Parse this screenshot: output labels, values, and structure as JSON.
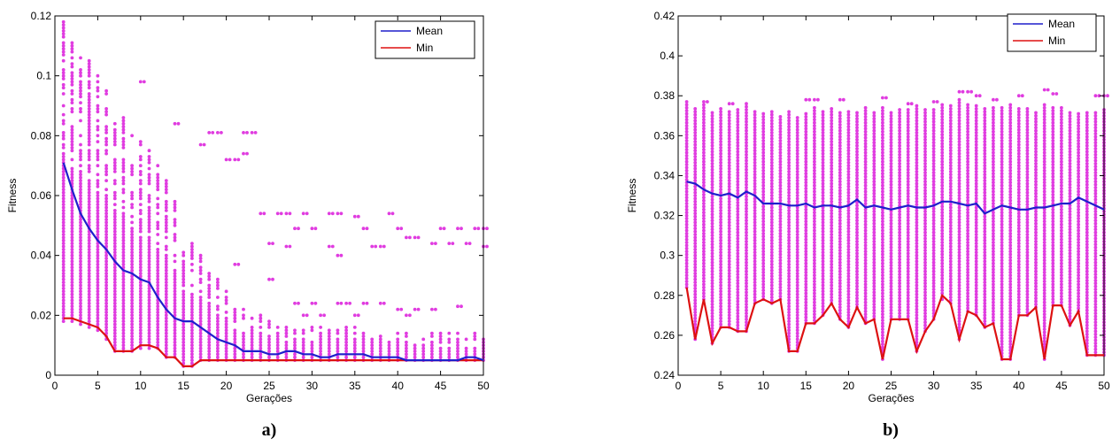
{
  "chart_data": [
    {
      "type": "scatter",
      "panel_label": "a)",
      "xlabel": "Gerações",
      "ylabel": "Fitness",
      "xlim": [
        0,
        50
      ],
      "ylim": [
        0,
        0.12
      ],
      "xticks": [
        0,
        5,
        10,
        15,
        20,
        25,
        30,
        35,
        40,
        45,
        50
      ],
      "yticks": [
        0,
        0.02,
        0.04,
        0.06,
        0.08,
        0.1,
        0.12
      ],
      "ytick_labels": [
        "0",
        "0.02",
        "0.04",
        "0.06",
        "0.08",
        "0.1",
        "0.12"
      ],
      "legend_position": "top-right",
      "colors": {
        "population": "#e03ce0",
        "mean": "#1f1fcc",
        "min": "#dd1111"
      },
      "population_range": {
        "x": [
          1,
          2,
          3,
          4,
          5,
          6,
          7,
          8,
          9,
          10,
          11,
          12,
          13,
          14,
          15,
          16,
          17,
          18,
          19,
          20,
          21,
          22,
          23,
          24,
          25,
          26,
          27,
          28,
          29,
          30,
          31,
          32,
          33,
          34,
          35,
          36,
          37,
          38,
          39,
          40,
          41,
          42,
          43,
          44,
          45,
          46,
          47,
          48,
          49,
          50
        ],
        "low": [
          0.018,
          0.018,
          0.017,
          0.016,
          0.015,
          0.012,
          0.008,
          0.008,
          0.008,
          0.009,
          0.009,
          0.009,
          0.006,
          0.006,
          0.003,
          0.003,
          0.005,
          0.005,
          0.005,
          0.005,
          0.005,
          0.005,
          0.005,
          0.005,
          0.005,
          0.005,
          0.005,
          0.005,
          0.005,
          0.005,
          0.005,
          0.005,
          0.005,
          0.005,
          0.005,
          0.005,
          0.005,
          0.005,
          0.005,
          0.005,
          0.005,
          0.005,
          0.005,
          0.005,
          0.005,
          0.005,
          0.005,
          0.005,
          0.005,
          0.005
        ],
        "high": [
          0.118,
          0.112,
          0.108,
          0.106,
          0.1,
          0.095,
          0.09,
          0.086,
          0.08,
          0.078,
          0.075,
          0.07,
          0.065,
          0.058,
          0.05,
          0.045,
          0.04,
          0.036,
          0.032,
          0.028,
          0.025,
          0.023,
          0.02,
          0.02,
          0.018,
          0.016,
          0.016,
          0.016,
          0.016,
          0.016,
          0.016,
          0.016,
          0.016,
          0.016,
          0.016,
          0.014,
          0.014,
          0.014,
          0.014,
          0.014,
          0.014,
          0.014,
          0.014,
          0.014,
          0.014,
          0.014,
          0.014,
          0.014,
          0.014,
          0.014
        ]
      },
      "outliers": [
        {
          "x": 10,
          "y": 0.098
        },
        {
          "x": 14,
          "y": 0.084
        },
        {
          "x": 18,
          "y": 0.081
        },
        {
          "x": 19,
          "y": 0.081
        },
        {
          "x": 22,
          "y": 0.081
        },
        {
          "x": 23,
          "y": 0.081
        },
        {
          "x": 17,
          "y": 0.077
        },
        {
          "x": 20,
          "y": 0.072
        },
        {
          "x": 21,
          "y": 0.072
        },
        {
          "x": 22,
          "y": 0.074
        },
        {
          "x": 24,
          "y": 0.054
        },
        {
          "x": 26,
          "y": 0.054
        },
        {
          "x": 27,
          "y": 0.054
        },
        {
          "x": 29,
          "y": 0.054
        },
        {
          "x": 32,
          "y": 0.054
        },
        {
          "x": 33,
          "y": 0.054
        },
        {
          "x": 35,
          "y": 0.053
        },
        {
          "x": 39,
          "y": 0.054
        },
        {
          "x": 45,
          "y": 0.049
        },
        {
          "x": 47,
          "y": 0.049
        },
        {
          "x": 49,
          "y": 0.049
        },
        {
          "x": 50,
          "y": 0.049
        },
        {
          "x": 28,
          "y": 0.049
        },
        {
          "x": 30,
          "y": 0.049
        },
        {
          "x": 36,
          "y": 0.049
        },
        {
          "x": 40,
          "y": 0.049
        },
        {
          "x": 41,
          "y": 0.046
        },
        {
          "x": 42,
          "y": 0.046
        },
        {
          "x": 44,
          "y": 0.044
        },
        {
          "x": 46,
          "y": 0.044
        },
        {
          "x": 48,
          "y": 0.044
        },
        {
          "x": 50,
          "y": 0.043
        },
        {
          "x": 37,
          "y": 0.043
        },
        {
          "x": 38,
          "y": 0.043
        },
        {
          "x": 25,
          "y": 0.044
        },
        {
          "x": 27,
          "y": 0.043
        },
        {
          "x": 32,
          "y": 0.043
        },
        {
          "x": 33,
          "y": 0.04
        },
        {
          "x": 21,
          "y": 0.037
        },
        {
          "x": 25,
          "y": 0.032
        },
        {
          "x": 28,
          "y": 0.024
        },
        {
          "x": 30,
          "y": 0.024
        },
        {
          "x": 33,
          "y": 0.024
        },
        {
          "x": 34,
          "y": 0.024
        },
        {
          "x": 36,
          "y": 0.024
        },
        {
          "x": 38,
          "y": 0.024
        },
        {
          "x": 40,
          "y": 0.022
        },
        {
          "x": 42,
          "y": 0.022
        },
        {
          "x": 44,
          "y": 0.022
        },
        {
          "x": 47,
          "y": 0.023
        },
        {
          "x": 35,
          "y": 0.02
        },
        {
          "x": 31,
          "y": 0.02
        },
        {
          "x": 29,
          "y": 0.02
        },
        {
          "x": 41,
          "y": 0.02
        }
      ],
      "series": [
        {
          "name": "Mean",
          "x": [
            1,
            2,
            3,
            4,
            5,
            6,
            7,
            8,
            9,
            10,
            11,
            12,
            13,
            14,
            15,
            16,
            17,
            18,
            19,
            20,
            21,
            22,
            23,
            24,
            25,
            26,
            27,
            28,
            29,
            30,
            31,
            32,
            33,
            34,
            35,
            36,
            37,
            38,
            39,
            40,
            41,
            42,
            43,
            44,
            45,
            46,
            47,
            48,
            49,
            50
          ],
          "values": [
            0.071,
            0.062,
            0.054,
            0.049,
            0.045,
            0.042,
            0.038,
            0.035,
            0.034,
            0.032,
            0.031,
            0.026,
            0.022,
            0.019,
            0.018,
            0.018,
            0.016,
            0.014,
            0.012,
            0.011,
            0.01,
            0.008,
            0.008,
            0.008,
            0.007,
            0.007,
            0.008,
            0.008,
            0.007,
            0.007,
            0.006,
            0.006,
            0.007,
            0.007,
            0.007,
            0.007,
            0.006,
            0.006,
            0.006,
            0.006,
            0.005,
            0.005,
            0.005,
            0.005,
            0.005,
            0.005,
            0.005,
            0.006,
            0.006,
            0.005
          ]
        },
        {
          "name": "Min",
          "x": [
            1,
            2,
            3,
            4,
            5,
            6,
            7,
            8,
            9,
            10,
            11,
            12,
            13,
            14,
            15,
            16,
            17,
            18,
            19,
            20,
            21,
            22,
            23,
            24,
            25,
            26,
            27,
            28,
            29,
            30,
            31,
            32,
            33,
            34,
            35,
            36,
            37,
            38,
            39,
            40,
            41,
            42,
            43,
            44,
            45,
            46,
            47,
            48,
            49,
            50
          ],
          "values": [
            0.019,
            0.019,
            0.018,
            0.017,
            0.016,
            0.013,
            0.008,
            0.008,
            0.008,
            0.01,
            0.01,
            0.009,
            0.006,
            0.006,
            0.003,
            0.003,
            0.005,
            0.005,
            0.005,
            0.005,
            0.005,
            0.005,
            0.005,
            0.005,
            0.005,
            0.005,
            0.005,
            0.005,
            0.005,
            0.005,
            0.005,
            0.005,
            0.005,
            0.005,
            0.005,
            0.005,
            0.005,
            0.005,
            0.005,
            0.005,
            0.005,
            0.005,
            0.005,
            0.005,
            0.005,
            0.005,
            0.005,
            0.005,
            0.005,
            0.005
          ]
        }
      ]
    },
    {
      "type": "scatter",
      "panel_label": "b)",
      "xlabel": "Gerações",
      "ylabel": "Fitness",
      "xlim": [
        0,
        50
      ],
      "ylim": [
        0.24,
        0.42
      ],
      "xticks": [
        0,
        5,
        10,
        15,
        20,
        25,
        30,
        35,
        40,
        45,
        50
      ],
      "yticks": [
        0.24,
        0.26,
        0.28,
        0.3,
        0.32,
        0.34,
        0.36,
        0.38,
        0.4,
        0.42
      ],
      "ytick_labels": [
        "0.24",
        "0.26",
        "0.28",
        "0.3",
        "0.32",
        "0.34",
        "0.36",
        "0.38",
        "0.4",
        "0.42"
      ],
      "legend_position": "top-right",
      "colors": {
        "population": "#e03ce0",
        "mean": "#1f1fcc",
        "min": "#dd1111"
      },
      "population_range": {
        "x": [
          1,
          2,
          3,
          4,
          5,
          6,
          7,
          8,
          9,
          10,
          11,
          12,
          13,
          14,
          15,
          16,
          17,
          18,
          19,
          20,
          21,
          22,
          23,
          24,
          25,
          26,
          27,
          28,
          29,
          30,
          31,
          32,
          33,
          34,
          35,
          36,
          37,
          38,
          39,
          40,
          41,
          42,
          43,
          44,
          45,
          46,
          47,
          48,
          49,
          50
        ],
        "low": [
          0.284,
          0.258,
          0.278,
          0.256,
          0.264,
          0.264,
          0.262,
          0.262,
          0.276,
          0.278,
          0.276,
          0.278,
          0.252,
          0.252,
          0.266,
          0.266,
          0.27,
          0.276,
          0.268,
          0.264,
          0.274,
          0.266,
          0.268,
          0.248,
          0.268,
          0.268,
          0.268,
          0.252,
          0.262,
          0.268,
          0.278,
          0.276,
          0.258,
          0.272,
          0.27,
          0.264,
          0.266,
          0.248,
          0.248,
          0.27,
          0.27,
          0.274,
          0.248,
          0.275,
          0.275,
          0.265,
          0.272,
          0.25,
          0.25,
          0.25
        ],
        "high": [
          0.378,
          0.374,
          0.376,
          0.372,
          0.374,
          0.372,
          0.374,
          0.376,
          0.372,
          0.372,
          0.372,
          0.37,
          0.372,
          0.37,
          0.372,
          0.374,
          0.372,
          0.374,
          0.372,
          0.372,
          0.372,
          0.374,
          0.372,
          0.374,
          0.372,
          0.374,
          0.374,
          0.376,
          0.374,
          0.374,
          0.376,
          0.376,
          0.378,
          0.376,
          0.376,
          0.374,
          0.374,
          0.374,
          0.376,
          0.374,
          0.374,
          0.372,
          0.376,
          0.374,
          0.374,
          0.372,
          0.372,
          0.372,
          0.372,
          0.374
        ]
      },
      "outliers": [
        {
          "x": 15,
          "y": 0.378
        },
        {
          "x": 16,
          "y": 0.378
        },
        {
          "x": 19,
          "y": 0.378
        },
        {
          "x": 24,
          "y": 0.379
        },
        {
          "x": 33,
          "y": 0.382
        },
        {
          "x": 34,
          "y": 0.382
        },
        {
          "x": 35,
          "y": 0.38
        },
        {
          "x": 37,
          "y": 0.378
        },
        {
          "x": 40,
          "y": 0.38
        },
        {
          "x": 43,
          "y": 0.383
        },
        {
          "x": 44,
          "y": 0.381
        },
        {
          "x": 49,
          "y": 0.38
        },
        {
          "x": 50,
          "y": 0.38
        },
        {
          "x": 3,
          "y": 0.377
        },
        {
          "x": 6,
          "y": 0.376
        },
        {
          "x": 27,
          "y": 0.376
        },
        {
          "x": 30,
          "y": 0.377
        }
      ],
      "series": [
        {
          "name": "Mean",
          "x": [
            1,
            2,
            3,
            4,
            5,
            6,
            7,
            8,
            9,
            10,
            11,
            12,
            13,
            14,
            15,
            16,
            17,
            18,
            19,
            20,
            21,
            22,
            23,
            24,
            25,
            26,
            27,
            28,
            29,
            30,
            31,
            32,
            33,
            34,
            35,
            36,
            37,
            38,
            39,
            40,
            41,
            42,
            43,
            44,
            45,
            46,
            47,
            48,
            49,
            50
          ],
          "values": [
            0.337,
            0.336,
            0.333,
            0.331,
            0.33,
            0.331,
            0.329,
            0.332,
            0.33,
            0.326,
            0.326,
            0.326,
            0.325,
            0.325,
            0.326,
            0.324,
            0.325,
            0.325,
            0.324,
            0.325,
            0.328,
            0.324,
            0.325,
            0.324,
            0.323,
            0.324,
            0.325,
            0.324,
            0.324,
            0.325,
            0.327,
            0.327,
            0.326,
            0.325,
            0.326,
            0.321,
            0.323,
            0.325,
            0.324,
            0.323,
            0.323,
            0.324,
            0.324,
            0.325,
            0.326,
            0.326,
            0.329,
            0.327,
            0.325,
            0.323
          ]
        },
        {
          "name": "Min",
          "x": [
            1,
            2,
            3,
            4,
            5,
            6,
            7,
            8,
            9,
            10,
            11,
            12,
            13,
            14,
            15,
            16,
            17,
            18,
            19,
            20,
            21,
            22,
            23,
            24,
            25,
            26,
            27,
            28,
            29,
            30,
            31,
            32,
            33,
            34,
            35,
            36,
            37,
            38,
            39,
            40,
            41,
            42,
            43,
            44,
            45,
            46,
            47,
            48,
            49,
            50
          ],
          "values": [
            0.284,
            0.258,
            0.278,
            0.256,
            0.264,
            0.264,
            0.262,
            0.262,
            0.276,
            0.278,
            0.276,
            0.278,
            0.252,
            0.252,
            0.266,
            0.266,
            0.27,
            0.276,
            0.268,
            0.264,
            0.274,
            0.266,
            0.268,
            0.248,
            0.268,
            0.268,
            0.268,
            0.252,
            0.262,
            0.268,
            0.28,
            0.276,
            0.258,
            0.272,
            0.27,
            0.264,
            0.266,
            0.248,
            0.248,
            0.27,
            0.27,
            0.274,
            0.248,
            0.275,
            0.275,
            0.265,
            0.272,
            0.25,
            0.25,
            0.25
          ]
        }
      ]
    }
  ]
}
